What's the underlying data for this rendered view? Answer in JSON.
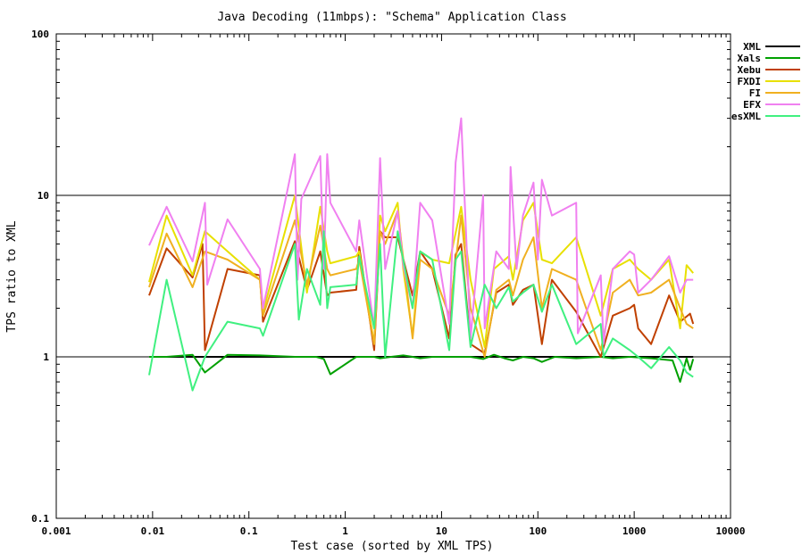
{
  "chart_data": {
    "type": "line",
    "title": "Java Decoding (11mbps): \"Schema\" Application Class",
    "xlabel": "Test case (sorted by XML TPS)",
    "ylabel": "TPS ratio to XML",
    "xscale": "log",
    "yscale": "log",
    "xlim": [
      0.001,
      10000
    ],
    "ylim": [
      0.1,
      100
    ],
    "xticks": [
      "0.001",
      "0.01",
      "0.1",
      "1",
      "10",
      "100",
      "1000",
      "10000"
    ],
    "yticks": [
      "0.1",
      "1",
      "10",
      "100"
    ],
    "grid_lines_y": [
      1,
      10
    ],
    "legend_position": "top-right",
    "series": [
      {
        "name": "XML",
        "color": "#000000",
        "x": [
          0.0092,
          4100
        ],
        "y": [
          1.0,
          1.0
        ]
      },
      {
        "name": "Xals",
        "color": "#00a000",
        "x": [
          0.0092,
          0.014,
          0.026,
          0.035,
          0.06,
          0.13,
          0.3,
          0.33,
          0.5,
          0.6,
          0.7,
          1.3,
          2.0,
          2.3,
          3.0,
          4.0,
          5.0,
          6.0,
          8.0,
          12.0,
          16.0,
          20.0,
          27.0,
          35.0,
          45.0,
          55.0,
          70.0,
          90.0,
          110.0,
          150.0,
          250.0,
          450.0,
          600.0,
          900.0,
          1500.0,
          2500.0,
          3000.0,
          3500.0,
          3800.0,
          4100.0
        ],
        "y": [
          1.0,
          1.0,
          1.03,
          0.8,
          1.03,
          1.02,
          1.0,
          1.0,
          1.0,
          0.97,
          0.78,
          1.0,
          1.0,
          0.98,
          1.0,
          1.02,
          1.0,
          0.98,
          1.0,
          1.0,
          1.0,
          1.0,
          0.97,
          1.03,
          0.98,
          0.95,
          1.0,
          0.98,
          0.93,
          1.0,
          0.98,
          1.0,
          0.98,
          1.0,
          0.98,
          0.95,
          0.7,
          0.98,
          0.83,
          0.97
        ]
      },
      {
        "name": "Xebu",
        "color": "#c04000",
        "x": [
          0.0092,
          0.014,
          0.026,
          0.033,
          0.035,
          0.06,
          0.13,
          0.14,
          0.3,
          0.4,
          0.55,
          0.65,
          0.7,
          1.3,
          1.4,
          2.0,
          2.3,
          2.6,
          3.5,
          5.0,
          6.0,
          8.0,
          12.0,
          14.0,
          16.0,
          20.0,
          28.0,
          37.0,
          50.0,
          55.0,
          70.0,
          90.0,
          110.0,
          140.0,
          250.0,
          450.0,
          600.0,
          900.0,
          1000.0,
          1100.0,
          1500.0,
          2300.0,
          3000.0,
          3800.0,
          4100.0
        ],
        "y": [
          2.4,
          4.7,
          3.1,
          5.0,
          1.1,
          3.5,
          3.2,
          1.65,
          5.2,
          2.6,
          4.5,
          2.4,
          2.5,
          2.6,
          4.8,
          1.1,
          6.0,
          5.5,
          5.5,
          2.4,
          4.5,
          3.5,
          1.3,
          4.3,
          5.0,
          1.2,
          1.05,
          2.5,
          2.8,
          2.1,
          2.6,
          2.8,
          1.2,
          3.0,
          1.9,
          1.0,
          1.8,
          2.0,
          2.1,
          1.5,
          1.2,
          2.4,
          1.65,
          1.85,
          1.6
        ]
      },
      {
        "name": "FXDI",
        "color": "#e8e000",
        "x": [
          0.0092,
          0.014,
          0.026,
          0.035,
          0.06,
          0.13,
          0.14,
          0.3,
          0.4,
          0.55,
          0.65,
          0.7,
          1.3,
          1.4,
          2.0,
          2.3,
          2.6,
          3.5,
          4.0,
          5.0,
          6.0,
          8.0,
          12.0,
          16.0,
          20.0,
          28.0,
          35.0,
          50.0,
          55.0,
          70.0,
          90.0,
          110.0,
          140.0,
          250.0,
          450.0,
          600.0,
          900.0,
          1100.0,
          1500.0,
          2300.0,
          3000.0,
          3500.0,
          4100.0
        ],
        "y": [
          2.9,
          7.5,
          3.2,
          6.0,
          4.5,
          3.0,
          1.9,
          10.0,
          2.5,
          8.5,
          4.5,
          3.8,
          4.2,
          4.5,
          1.2,
          7.5,
          6.0,
          9.0,
          3.5,
          1.35,
          4.5,
          4.0,
          3.8,
          8.5,
          3.0,
          1.15,
          3.5,
          4.2,
          3.0,
          7.0,
          9.0,
          4.0,
          3.8,
          5.5,
          1.8,
          3.5,
          4.0,
          3.5,
          3.0,
          4.0,
          1.5,
          3.7,
          3.3
        ]
      },
      {
        "name": "FI",
        "color": "#f0b020",
        "x": [
          0.0092,
          0.014,
          0.026,
          0.035,
          0.06,
          0.13,
          0.14,
          0.3,
          0.4,
          0.55,
          0.65,
          0.7,
          1.3,
          1.4,
          2.0,
          2.3,
          2.6,
          3.5,
          5.0,
          6.0,
          8.0,
          12.0,
          16.0,
          20.0,
          28.0,
          37.0,
          50.0,
          55.0,
          70.0,
          90.0,
          110.0,
          140.0,
          250.0,
          450.0,
          600.0,
          900.0,
          1100.0,
          1500.0,
          2300.0,
          3000.0,
          3500.0,
          4100.0
        ],
        "y": [
          2.7,
          5.8,
          2.7,
          4.5,
          4.0,
          3.0,
          1.8,
          7.0,
          2.8,
          6.5,
          3.5,
          3.2,
          3.5,
          4.0,
          1.2,
          6.0,
          5.0,
          8.0,
          1.3,
          4.0,
          3.5,
          1.8,
          7.5,
          2.0,
          1.0,
          2.6,
          3.0,
          2.4,
          4.0,
          5.5,
          2.0,
          3.5,
          3.0,
          1.1,
          2.5,
          3.0,
          2.4,
          2.5,
          3.0,
          2.0,
          1.6,
          1.5
        ]
      },
      {
        "name": "EFX",
        "color": "#f080f0",
        "x": [
          0.0092,
          0.014,
          0.026,
          0.035,
          0.037,
          0.06,
          0.13,
          0.14,
          0.3,
          0.32,
          0.35,
          0.55,
          0.6,
          0.65,
          0.7,
          1.3,
          1.4,
          2.0,
          2.3,
          2.6,
          3.5,
          4.0,
          5.0,
          6.0,
          8.0,
          12.0,
          14.0,
          16.0,
          20.0,
          27.0,
          28.0,
          37.0,
          50.0,
          52.0,
          60.0,
          70.0,
          90.0,
          100.0,
          110.0,
          140.0,
          250.0,
          260.0,
          450.0,
          480.0,
          600.0,
          900.0,
          1000.0,
          1100.0,
          1500.0,
          2300.0,
          3000.0,
          3500.0,
          4100.0
        ],
        "y": [
          4.9,
          8.5,
          3.9,
          9.0,
          2.8,
          7.1,
          3.5,
          2.0,
          18.0,
          3.0,
          9.5,
          17.5,
          3.5,
          18.0,
          9.0,
          4.5,
          7.0,
          1.5,
          17.0,
          3.5,
          8.0,
          3.7,
          2.0,
          9.0,
          7.0,
          1.6,
          16.0,
          30.0,
          1.3,
          10.0,
          1.5,
          4.5,
          3.5,
          15.0,
          3.5,
          7.5,
          12.0,
          4.0,
          12.5,
          7.5,
          9.0,
          1.4,
          3.2,
          1.2,
          3.5,
          4.5,
          4.3,
          2.5,
          3.0,
          4.2,
          2.5,
          3.0,
          3.0
        ]
      },
      {
        "name": "esXML",
        "color": "#40f080",
        "x": [
          0.0092,
          0.014,
          0.026,
          0.035,
          0.06,
          0.13,
          0.14,
          0.3,
          0.33,
          0.4,
          0.55,
          0.6,
          0.65,
          0.7,
          1.3,
          1.4,
          2.0,
          2.3,
          2.6,
          3.5,
          5.0,
          6.0,
          8.0,
          12.0,
          14.0,
          16.0,
          20.0,
          28.0,
          37.0,
          50.0,
          55.0,
          70.0,
          90.0,
          110.0,
          140.0,
          250.0,
          450.0,
          480.0,
          600.0,
          900.0,
          1100.0,
          1500.0,
          2300.0,
          3000.0,
          3500.0,
          4100.0
        ],
        "y": [
          0.77,
          3.0,
          0.62,
          1.0,
          1.65,
          1.5,
          1.35,
          5.0,
          1.7,
          3.5,
          2.1,
          6.0,
          2.0,
          2.7,
          2.8,
          4.2,
          1.5,
          5.0,
          1.0,
          6.0,
          2.0,
          4.5,
          4.0,
          1.1,
          4.0,
          4.5,
          1.15,
          2.8,
          2.0,
          2.7,
          2.2,
          2.5,
          2.8,
          1.9,
          2.8,
          1.2,
          1.6,
          1.0,
          1.3,
          1.1,
          1.0,
          0.85,
          1.15,
          0.95,
          0.8,
          0.75
        ]
      }
    ]
  }
}
